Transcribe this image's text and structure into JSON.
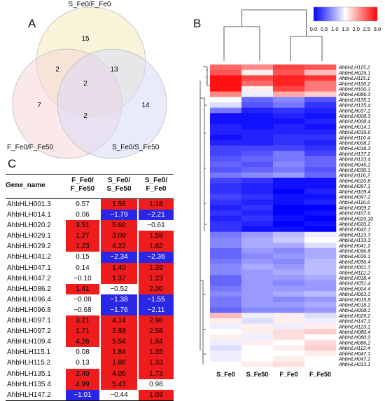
{
  "panels": {
    "a": "A",
    "b": "B",
    "c": "C"
  },
  "venn": {
    "sets": [
      {
        "name": "S_Fe0/F_Fe0",
        "color": "#f7f0cc"
      },
      {
        "name": "F_Fe0/F_Fe50",
        "color": "#f7d6d8"
      },
      {
        "name": "S_Fe0/S_Fe50",
        "color": "#d8dbf6"
      }
    ],
    "regions": {
      "top_only": "15",
      "left_only": "7",
      "right_only": "14",
      "top_left": "2",
      "top_right": "13",
      "left_right": "2",
      "all": "2"
    }
  },
  "table": {
    "headers": [
      "Gene_name",
      "F_Fe0/",
      "F_Fe50",
      "S_Fe0/",
      "S_Fe50",
      "S_Fe0/",
      "F_Fe0"
    ],
    "colors": {
      "up": "#ee1c1c",
      "down": "#2a26e6",
      "neutral": "#ffffff"
    },
    "rows": [
      {
        "gene": "AhbHLH001.3",
        "v": [
          "0.57",
          "1.56",
          "1.18"
        ]
      },
      {
        "gene": "AhbHLH014.1",
        "v": [
          "0.06",
          "−1.79",
          "−2.21"
        ]
      },
      {
        "gene": "AhbHLH020.2",
        "v": [
          "3.51",
          "5.60",
          "−0.61"
        ]
      },
      {
        "gene": "AhbHLH029.1",
        "v": [
          "1.27",
          "3.09",
          "1.59"
        ]
      },
      {
        "gene": "AhbHLH029.2",
        "v": [
          "1.23",
          "4.22",
          "1.82"
        ]
      },
      {
        "gene": "AhbHLH041.2",
        "v": [
          "0.15",
          "−2.34",
          "−2.36"
        ]
      },
      {
        "gene": "AhbHLH047.1",
        "v": [
          "0.14",
          "1.40",
          "1.39"
        ]
      },
      {
        "gene": "AhbHLH047.2",
        "v": [
          "−0.10",
          "1.37",
          "1.23"
        ]
      },
      {
        "gene": "AhbHLH086.2",
        "v": [
          "1.41",
          "−0.52",
          "2.00"
        ]
      },
      {
        "gene": "AhbHLH096.4",
        "v": [
          "−0.08",
          "−1.38",
          "−1.55"
        ]
      },
      {
        "gene": "AhbHLH096.8",
        "v": [
          "−0.68",
          "−1.76",
          "−2.11"
        ]
      },
      {
        "gene": "AhbHLH097.1",
        "v": [
          "3.21",
          "4.14",
          "2.96"
        ]
      },
      {
        "gene": "AhbHLH097.2",
        "v": [
          "1.71",
          "2.93",
          "2.58"
        ]
      },
      {
        "gene": "AhbHLH109.4",
        "v": [
          "4.26",
          "5.54",
          "1.84"
        ]
      },
      {
        "gene": "AhbHLH115.1",
        "v": [
          "0.08",
          "1.84",
          "1.35"
        ]
      },
      {
        "gene": "AhbHLH115.2",
        "v": [
          "0.13",
          "1.88",
          "1.33"
        ]
      },
      {
        "gene": "AhbHLH135.1",
        "v": [
          "2.40",
          "4.05",
          "1.73"
        ]
      },
      {
        "gene": "AhbHLH135.4",
        "v": [
          "4.99",
          "5.43",
          "0.98"
        ]
      },
      {
        "gene": "AhbHLH147.2",
        "v": [
          "−1.01",
          "−0.44",
          "1.03"
        ]
      }
    ]
  },
  "chart_data": {
    "type": "heatmap",
    "columns": [
      "S_Fe0",
      "S_Fe50",
      "F_Fe0",
      "F_Fe50"
    ],
    "colorbar": {
      "ticks": [
        "0.0",
        "0.5",
        "1.0",
        "1.5",
        "2.0",
        "2.5",
        "3.0"
      ],
      "range": [
        0,
        3
      ],
      "low": "#0000ff",
      "mid": "#ffffff",
      "high": "#ff0000"
    },
    "rows": [
      "AhbHLH115.2",
      "AhbHLH029.1",
      "AhbHLH115.1",
      "AhbHLH100.2",
      "AhbHLH100.1",
      "AhbHLH086.3",
      "AhbHLH135.1",
      "AhbHLH135.4",
      "AhbHLH037.2",
      "AhbHLH008.3",
      "AhbHLH008.4",
      "AhbHLH014.1",
      "AhbHLH019.6",
      "AhbHLH110.4",
      "AhbHLH008.2",
      "AhbHLH018.3",
      "AhbHLH137.2",
      "AhbHLH123.4",
      "AhbHLH045.2",
      "AhbHLH030.1",
      "AhbHLH116.2",
      "AhbHLH020.8",
      "AhbHLH097.1",
      "AhbHLH109.4",
      "AhbHLH097.2",
      "AhbHLH116.6",
      "AhbHLH009.2",
      "AhbHLH107.6",
      "AhbHLH020.10",
      "AhbHLH020.2",
      "AhbHLH042.1",
      "AhbHLH123.3",
      "AhbHLH133.3",
      "AhbHLH041.2",
      "AhbHLH096.8",
      "AhbHLH036.1",
      "AhbHLH096.4",
      "AhbHLH001.3",
      "AhbHLH112.2",
      "AhbHLH018.4",
      "AhbHLH051.4",
      "AhbHLH004.4",
      "AhbHLH063.3",
      "AhbHLH019.8",
      "AhbHLH018.2",
      "AhbHLH008.1",
      "AhbHLH029.2",
      "AhbHLH147.2",
      "AhbHLH123.1",
      "AhbHLH080.4",
      "AhbHLH080.2",
      "AhbHLH086.2",
      "AhbHLH112.4",
      "AhbHLH047.1",
      "AhbHLH047.2",
      "AhbHLH013.1"
    ],
    "values": [
      [
        2.4,
        2.2,
        2.6,
        2.5
      ],
      [
        2.5,
        1.6,
        2.5,
        1.9
      ],
      [
        2.9,
        2.6,
        2.8,
        2.7
      ],
      [
        2.9,
        2.4,
        2.8,
        2.3
      ],
      [
        2.9,
        1.6,
        2.6,
        2.3
      ],
      [
        2.2,
        1.4,
        2.0,
        1.8
      ],
      [
        1.5,
        0.6,
        0.8,
        0.5
      ],
      [
        1.3,
        0.5,
        0.7,
        0.3
      ],
      [
        0.7,
        0.2,
        0.3,
        0.2
      ],
      [
        0.1,
        0.1,
        0.2,
        0.1
      ],
      [
        0.1,
        0.1,
        0.1,
        0.2
      ],
      [
        0.2,
        0.1,
        0.2,
        0.1
      ],
      [
        0.2,
        0.2,
        0.2,
        0.2
      ],
      [
        0.1,
        0.2,
        0.3,
        0.3
      ],
      [
        0.2,
        0.2,
        0.3,
        0.2
      ],
      [
        0.4,
        0.4,
        0.4,
        0.3
      ],
      [
        0.4,
        0.5,
        0.7,
        0.4
      ],
      [
        0.5,
        0.6,
        0.7,
        0.6
      ],
      [
        0.6,
        0.5,
        0.8,
        0.6
      ],
      [
        0.5,
        0.6,
        0.7,
        0.5
      ],
      [
        0.7,
        0.8,
        0.9,
        0.6
      ],
      [
        0.4,
        0.3,
        0.1,
        0.1
      ],
      [
        0.3,
        0.2,
        0.1,
        0.1
      ],
      [
        0.3,
        0.2,
        0.0,
        0.2
      ],
      [
        0.4,
        0.3,
        0.1,
        0.1
      ],
      [
        0.3,
        0.2,
        0.1,
        0.2
      ],
      [
        0.2,
        0.3,
        0.0,
        0.0
      ],
      [
        0.3,
        0.2,
        0.0,
        0.1
      ],
      [
        0.2,
        0.3,
        0.1,
        0.0
      ],
      [
        0.3,
        0.2,
        0.0,
        0.1
      ],
      [
        0.3,
        0.1,
        0.1,
        0.0
      ],
      [
        0.7,
        0.9,
        1.1,
        1.4
      ],
      [
        0.8,
        1.0,
        1.2,
        1.5
      ],
      [
        0.8,
        1.0,
        1.0,
        1.3
      ],
      [
        0.6,
        0.9,
        0.8,
        1.0
      ],
      [
        0.6,
        0.8,
        0.9,
        1.0
      ],
      [
        0.7,
        0.9,
        0.8,
        1.1
      ],
      [
        0.8,
        1.0,
        0.9,
        1.1
      ],
      [
        0.8,
        0.9,
        1.0,
        1.1
      ],
      [
        0.6,
        0.9,
        0.9,
        1.0
      ],
      [
        0.6,
        0.9,
        0.8,
        0.9
      ],
      [
        0.7,
        0.9,
        0.9,
        0.9
      ],
      [
        0.8,
        0.9,
        1.0,
        1.1
      ],
      [
        0.7,
        0.9,
        0.8,
        0.9
      ],
      [
        0.7,
        0.9,
        0.9,
        1.0
      ],
      [
        0.6,
        0.8,
        0.8,
        0.9
      ],
      [
        1.9,
        1.4,
        1.6,
        1.3
      ],
      [
        1.6,
        1.3,
        1.6,
        1.4
      ],
      [
        1.4,
        1.6,
        1.4,
        1.6
      ],
      [
        1.5,
        1.6,
        1.7,
        1.8
      ],
      [
        1.6,
        1.4,
        1.7,
        1.5
      ],
      [
        1.4,
        1.6,
        1.5,
        1.7
      ],
      [
        1.3,
        1.5,
        1.6,
        1.8
      ],
      [
        1.4,
        1.5,
        1.5,
        1.6
      ],
      [
        1.4,
        1.5,
        1.6,
        1.5
      ],
      [
        1.5,
        1.6,
        1.7,
        1.5
      ]
    ]
  }
}
